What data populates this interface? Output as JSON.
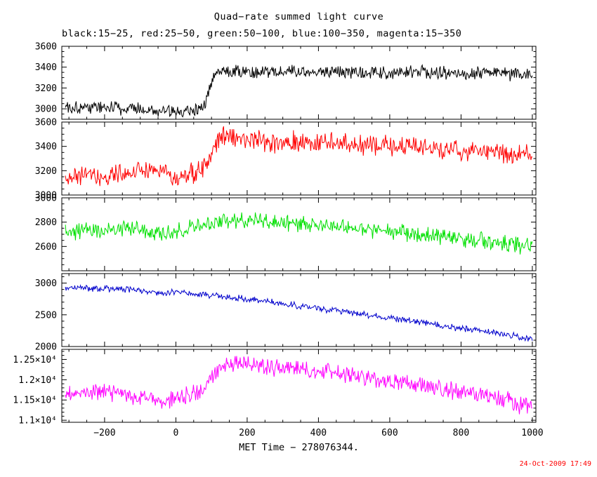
{
  "chart_data": {
    "type": "line",
    "title": "Quad−rate summed light curve",
    "subtitle": "black:15−25, red:25−50, green:50−100, blue:100−350, magenta:15−350",
    "xlabel": "MET Time − 278076344.",
    "timestamp": "24-Oct-2009 17:49",
    "timestamp_color": "#ff0000",
    "background": "#ffffff",
    "axis_color": "#000000",
    "legend_position": "subtitle-text",
    "grid": false,
    "x_axis": {
      "lim": [
        -320,
        1010
      ],
      "data_range": [
        -310,
        1000
      ],
      "major_ticks": [
        -200,
        0,
        200,
        400,
        600,
        800,
        1000
      ],
      "tick_labels": [
        "−200",
        "0",
        "200",
        "400",
        "600",
        "800",
        "1000"
      ],
      "minor_step": 50
    },
    "panels": [
      {
        "id": "black",
        "name": "black:15−25",
        "energy_band": "15−25",
        "color": "#000000",
        "ylim": [
          2900,
          3600
        ],
        "yticks": [
          {
            "v": 3000,
            "label": "3000"
          },
          {
            "v": 3200,
            "label": "3200"
          },
          {
            "v": 3400,
            "label": "3400"
          },
          {
            "v": 3600,
            "label": "3600"
          }
        ],
        "minor_step": 50,
        "trend": [
          [
            -310,
            3020
          ],
          [
            -200,
            3015
          ],
          [
            -120,
            3000
          ],
          [
            -60,
            2985
          ],
          [
            -20,
            2970
          ],
          [
            20,
            2985
          ],
          [
            60,
            3000
          ],
          [
            85,
            3060
          ],
          [
            100,
            3280
          ],
          [
            115,
            3350
          ],
          [
            140,
            3370
          ],
          [
            250,
            3355
          ],
          [
            400,
            3350
          ],
          [
            550,
            3345
          ],
          [
            700,
            3350
          ],
          [
            850,
            3340
          ],
          [
            1000,
            3335
          ]
        ],
        "noise": 80,
        "seed": 101,
        "npts": 650
      },
      {
        "id": "red",
        "name": "red:25−50",
        "energy_band": "25−50",
        "color": "#ff0000",
        "ylim": [
          3000,
          3600
        ],
        "yticks": [
          {
            "v": 3000,
            "label": "3000"
          },
          {
            "v": 3200,
            "label": "3200"
          },
          {
            "v": 3400,
            "label": "3400"
          },
          {
            "v": 3600,
            "label": "3600"
          }
        ],
        "minor_step": 50,
        "trend": [
          [
            -310,
            3150
          ],
          [
            -220,
            3150
          ],
          [
            -150,
            3160
          ],
          [
            -80,
            3200
          ],
          [
            -40,
            3230
          ],
          [
            -10,
            3140
          ],
          [
            20,
            3150
          ],
          [
            60,
            3190
          ],
          [
            90,
            3260
          ],
          [
            110,
            3420
          ],
          [
            130,
            3490
          ],
          [
            160,
            3470
          ],
          [
            250,
            3440
          ],
          [
            400,
            3430
          ],
          [
            550,
            3410
          ],
          [
            700,
            3390
          ],
          [
            850,
            3360
          ],
          [
            1000,
            3330
          ]
        ],
        "noise": 100,
        "seed": 202,
        "npts": 650
      },
      {
        "id": "green",
        "name": "green:50−100",
        "energy_band": "50−100",
        "color": "#00e000",
        "ylim": [
          2400,
          3000
        ],
        "yticks": [
          {
            "v": 2600,
            "label": "2600"
          },
          {
            "v": 2800,
            "label": "2800"
          },
          {
            "v": 3000,
            "label": "3000"
          }
        ],
        "minor_step": 50,
        "trend": [
          [
            -310,
            2720
          ],
          [
            -200,
            2730
          ],
          [
            -100,
            2740
          ],
          [
            -40,
            2700
          ],
          [
            0,
            2730
          ],
          [
            60,
            2760
          ],
          [
            120,
            2790
          ],
          [
            180,
            2815
          ],
          [
            260,
            2805
          ],
          [
            350,
            2785
          ],
          [
            450,
            2765
          ],
          [
            550,
            2735
          ],
          [
            650,
            2705
          ],
          [
            750,
            2680
          ],
          [
            850,
            2650
          ],
          [
            930,
            2630
          ],
          [
            1000,
            2595
          ]
        ],
        "noise": 80,
        "seed": 303,
        "npts": 650
      },
      {
        "id": "blue",
        "name": "blue:100−350",
        "energy_band": "100−350",
        "color": "#0000cc",
        "ylim": [
          2000,
          3150
        ],
        "yticks": [
          {
            "v": 2000,
            "label": "2000"
          },
          {
            "v": 2500,
            "label": "2500"
          },
          {
            "v": 3000,
            "label": "3000"
          }
        ],
        "minor_step": 100,
        "trend": [
          [
            -310,
            2925
          ],
          [
            -200,
            2915
          ],
          [
            -100,
            2880
          ],
          [
            -40,
            2840
          ],
          [
            0,
            2855
          ],
          [
            80,
            2815
          ],
          [
            160,
            2770
          ],
          [
            240,
            2720
          ],
          [
            320,
            2660
          ],
          [
            400,
            2600
          ],
          [
            480,
            2545
          ],
          [
            560,
            2480
          ],
          [
            640,
            2415
          ],
          [
            720,
            2350
          ],
          [
            800,
            2285
          ],
          [
            880,
            2225
          ],
          [
            940,
            2180
          ],
          [
            1000,
            2115
          ]
        ],
        "noise": 60,
        "seed": 404,
        "npts": 650
      },
      {
        "id": "magenta",
        "name": "magenta:15−350",
        "energy_band": "15−350",
        "color": "#ff00ff",
        "ylim": [
          10950,
          12750
        ],
        "yticks": [
          {
            "v": 11000,
            "label": "1.1×10⁴"
          },
          {
            "v": 11500,
            "label": "1.15×10⁴"
          },
          {
            "v": 12000,
            "label": "1.2×10⁴"
          },
          {
            "v": 12500,
            "label": "1.25×10⁴"
          }
        ],
        "minor_step": 100,
        "trend": [
          [
            -310,
            11650
          ],
          [
            -220,
            11700
          ],
          [
            -140,
            11650
          ],
          [
            -80,
            11550
          ],
          [
            -40,
            11450
          ],
          [
            0,
            11550
          ],
          [
            50,
            11650
          ],
          [
            80,
            11800
          ],
          [
            110,
            12150
          ],
          [
            140,
            12350
          ],
          [
            180,
            12400
          ],
          [
            260,
            12300
          ],
          [
            350,
            12260
          ],
          [
            450,
            12150
          ],
          [
            550,
            12020
          ],
          [
            650,
            11900
          ],
          [
            750,
            11760
          ],
          [
            850,
            11620
          ],
          [
            930,
            11480
          ],
          [
            1000,
            11320
          ]
        ],
        "noise": 260,
        "seed": 505,
        "npts": 650
      }
    ]
  }
}
